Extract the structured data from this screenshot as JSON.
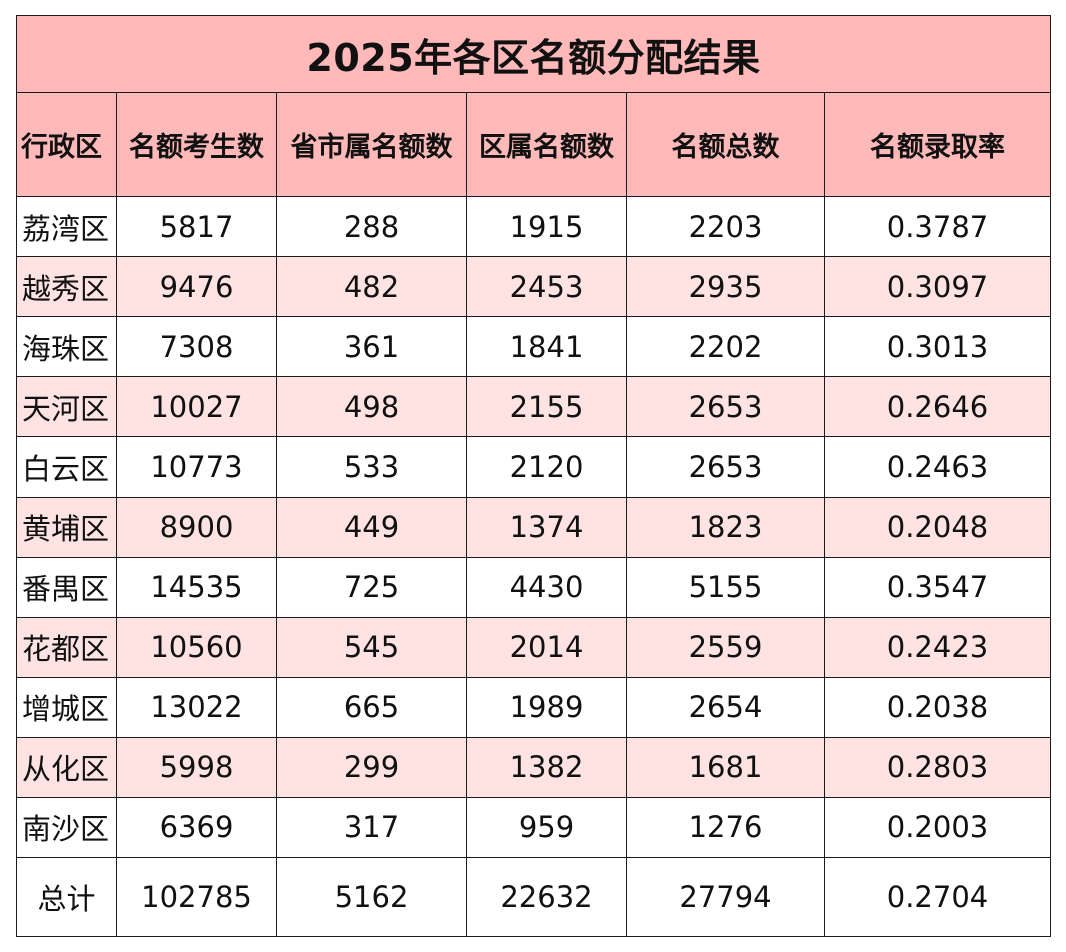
{
  "title": "2025年各区名额分配结果",
  "headers": [
    "行政区",
    "名额考生数",
    "省市属名额数",
    "区属名额数",
    "名额总数",
    "名额录取率"
  ],
  "rows": [
    {
      "district": "荔湾区",
      "candidates": "5817",
      "provincial": "288",
      "district_quota": "1915",
      "total": "2203",
      "rate": "0.3787"
    },
    {
      "district": "越秀区",
      "candidates": "9476",
      "provincial": "482",
      "district_quota": "2453",
      "total": "2935",
      "rate": "0.3097"
    },
    {
      "district": "海珠区",
      "candidates": "7308",
      "provincial": "361",
      "district_quota": "1841",
      "total": "2202",
      "rate": "0.3013"
    },
    {
      "district": "天河区",
      "candidates": "10027",
      "provincial": "498",
      "district_quota": "2155",
      "total": "2653",
      "rate": "0.2646"
    },
    {
      "district": "白云区",
      "candidates": "10773",
      "provincial": "533",
      "district_quota": "2120",
      "total": "2653",
      "rate": "0.2463"
    },
    {
      "district": "黄埔区",
      "candidates": "8900",
      "provincial": "449",
      "district_quota": "1374",
      "total": "1823",
      "rate": "0.2048"
    },
    {
      "district": "番禺区",
      "candidates": "14535",
      "provincial": "725",
      "district_quota": "4430",
      "total": "5155",
      "rate": "0.3547"
    },
    {
      "district": "花都区",
      "candidates": "10560",
      "provincial": "545",
      "district_quota": "2014",
      "total": "2559",
      "rate": "0.2423"
    },
    {
      "district": "增城区",
      "candidates": "13022",
      "provincial": "665",
      "district_quota": "1989",
      "total": "2654",
      "rate": "0.2038"
    },
    {
      "district": "从化区",
      "candidates": "5998",
      "provincial": "299",
      "district_quota": "1382",
      "total": "1681",
      "rate": "0.2803"
    },
    {
      "district": "南沙区",
      "candidates": "6369",
      "provincial": "317",
      "district_quota": "959",
      "total": "1276",
      "rate": "0.2003"
    }
  ],
  "total_row": {
    "label": "总计",
    "candidates": "102785",
    "provincial": "5162",
    "district_quota": "22632",
    "total": "27794",
    "rate": "0.2704"
  },
  "colors": {
    "header_bg": "#ffb9b9",
    "stripe_bg": "#ffe3e3",
    "border": "#1a1a1a"
  }
}
